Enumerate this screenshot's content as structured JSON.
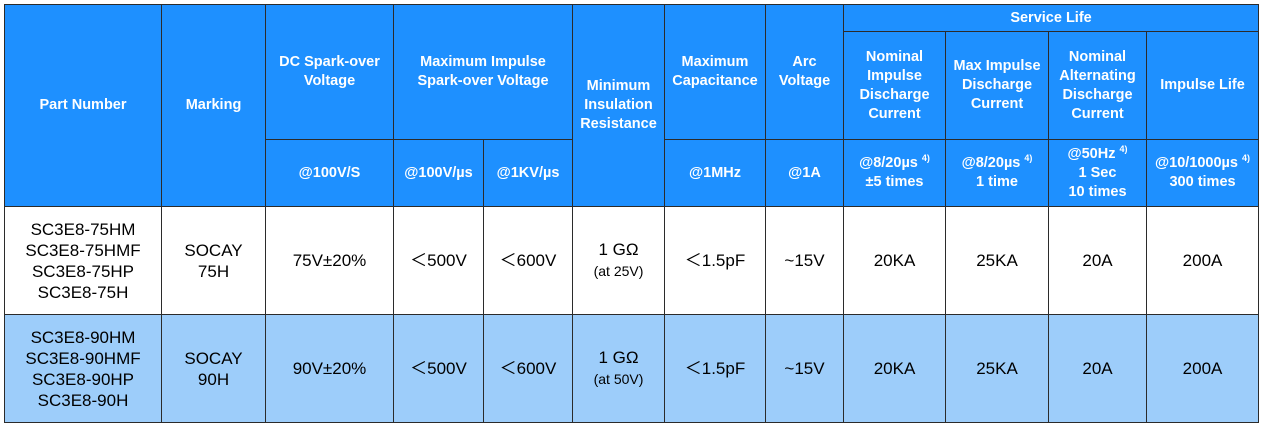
{
  "headers": {
    "part_number": "Part Number",
    "marking": "Marking",
    "dc_spark": "DC Spark-over Voltage",
    "max_impulse": "Maximum Impulse Spark-over Voltage",
    "min_insulation": "Minimum Insulation Resistance",
    "max_cap": "Maximum Capacitance",
    "arc_voltage": "Arc Voltage",
    "service_life": "Service Life",
    "nominal_impulse": "Nominal Impulse Discharge Current",
    "max_impulse_discharge": "Max Impulse Discharge Current",
    "nominal_alternating": "Nominal Alternating Discharge Current",
    "impulse_life": "Impulse Life"
  },
  "subheaders": {
    "dc_spark": "@100V/S",
    "imp_100v": "@100V/µs",
    "imp_1kv": "@1KV/µs",
    "cap": "@1MHz",
    "arc": "@1A",
    "nominal_impulse_1": "@8/20µs",
    "nominal_impulse_note": "4)",
    "nominal_impulse_2": "±5 times",
    "max_impulse_1": "@8/20µs",
    "max_impulse_note": "4)",
    "max_impulse_2": "1 time",
    "alt_1": "@50Hz",
    "alt_note": "4)",
    "alt_2": "1 Sec",
    "alt_3": "10 times",
    "life_1": "@10/1000µs",
    "life_note": "4)",
    "life_2": "300 times"
  },
  "rows": [
    {
      "parts": [
        "SC3E8-75HM",
        "SC3E8-75HMF",
        "SC3E8-75HP",
        "SC3E8-75H"
      ],
      "marking_1": "SOCAY",
      "marking_2": "75H",
      "dc_spark": "75V±20%",
      "imp_100v": "＜500V",
      "imp_1kv": "＜600V",
      "insulation": "1 GΩ",
      "insulation_note": "(at 25V)",
      "capacitance": "＜1.5pF",
      "arc": "~15V",
      "nominal_impulse": "20KA",
      "max_impulse": "25KA",
      "alternating": "20A",
      "impulse_life": "200A"
    },
    {
      "parts": [
        "SC3E8-90HM",
        "SC3E8-90HMF",
        "SC3E8-90HP",
        "SC3E8-90H"
      ],
      "marking_1": "SOCAY",
      "marking_2": "90H",
      "dc_spark": "90V±20%",
      "imp_100v": "＜500V",
      "imp_1kv": "＜600V",
      "insulation": "1 GΩ",
      "insulation_note": "(at 50V)",
      "capacitance": "＜1.5pF",
      "arc": "~15V",
      "nominal_impulse": "20KA",
      "max_impulse": "25KA",
      "alternating": "20A",
      "impulse_life": "200A"
    }
  ]
}
